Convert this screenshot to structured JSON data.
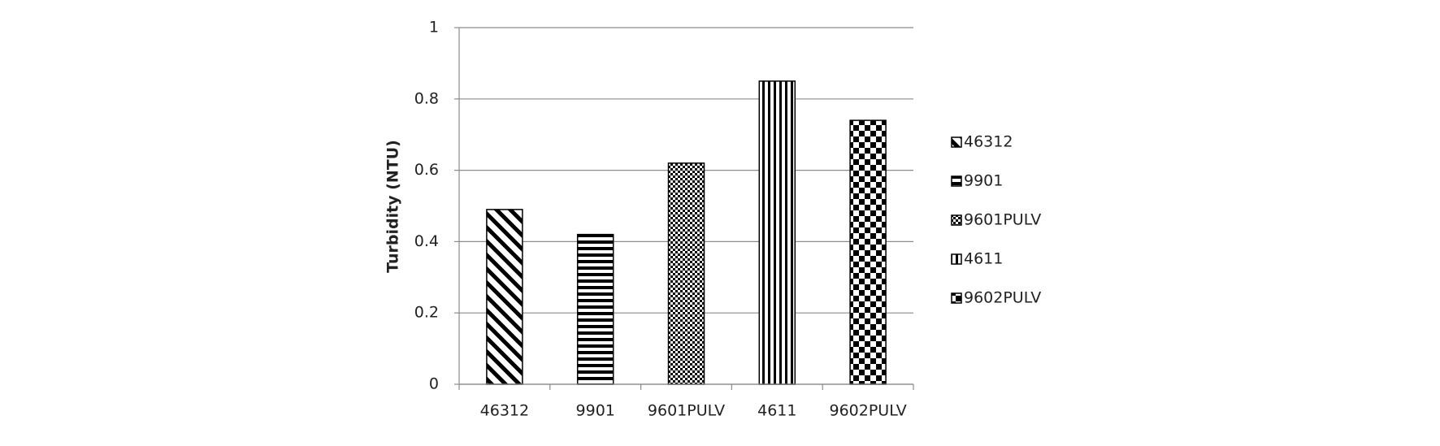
{
  "chart_data": {
    "type": "bar",
    "y_label": "Turbidity (NTU)",
    "categories": [
      "46312",
      "9901",
      "9601PULV",
      "4611",
      "9602PULV"
    ],
    "values": [
      0.49,
      0.42,
      0.62,
      0.85,
      0.74
    ],
    "color": "#000000",
    "ylim": [
      0,
      1
    ],
    "yticks": [
      0,
      0.2,
      0.4,
      0.6,
      0.8,
      1
    ],
    "grid": true,
    "legend": "right"
  }
}
